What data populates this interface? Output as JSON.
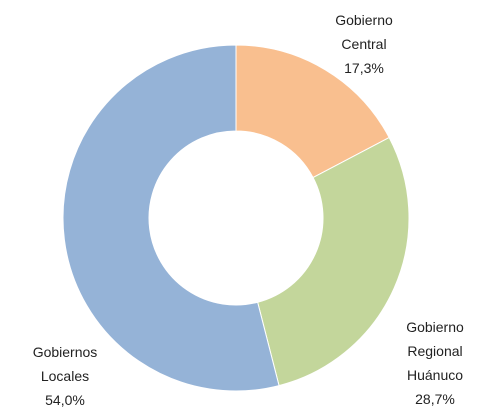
{
  "chart_data": {
    "type": "donut",
    "categories": [
      "Gobierno Central",
      "Gobierno Regional Huánuco",
      "Gobiernos Locales"
    ],
    "values": [
      17.3,
      28.7,
      54.0
    ],
    "value_labels": [
      "17,3%",
      "28,7%",
      "54,0%"
    ],
    "colors": [
      "#f9bf8f",
      "#c3d69b",
      "#95b3d7"
    ]
  }
}
